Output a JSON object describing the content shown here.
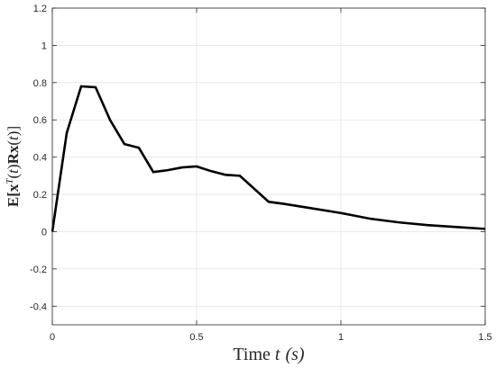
{
  "chart_data": {
    "type": "line",
    "xlabel_text": "Time ",
    "xlabel_var": "t",
    "xlabel_unit": "(s)",
    "ylabel": "E[x^T(t)Rx(t)]",
    "xlim": [
      0,
      1.5
    ],
    "ylim": [
      -0.5,
      1.2
    ],
    "grid": true,
    "x_ticks": [
      {
        "value": 0,
        "label": "0"
      },
      {
        "value": 0.5,
        "label": "0.5"
      },
      {
        "value": 1,
        "label": "1"
      },
      {
        "value": 1.5,
        "label": "1.5"
      }
    ],
    "y_ticks": [
      {
        "value": -0.4,
        "label": "-0.4"
      },
      {
        "value": -0.2,
        "label": "-0.2"
      },
      {
        "value": 0,
        "label": "0"
      },
      {
        "value": 0.2,
        "label": "0.2"
      },
      {
        "value": 0.4,
        "label": "0.4"
      },
      {
        "value": 0.6,
        "label": "0.6"
      },
      {
        "value": 0.8,
        "label": "0.8"
      },
      {
        "value": 1,
        "label": "1"
      },
      {
        "value": 1.2,
        "label": "1.2"
      }
    ],
    "series": [
      {
        "color": "#000000",
        "x": [
          0,
          0.05,
          0.1,
          0.15,
          0.2,
          0.25,
          0.3,
          0.35,
          0.4,
          0.45,
          0.5,
          0.55,
          0.6,
          0.65,
          0.7,
          0.75,
          0.8,
          0.9,
          1.0,
          1.1,
          1.2,
          1.3,
          1.4,
          1.5
        ],
        "y": [
          0,
          0.53,
          0.78,
          0.775,
          0.6,
          0.47,
          0.45,
          0.32,
          0.33,
          0.345,
          0.35,
          0.325,
          0.305,
          0.3,
          0.23,
          0.16,
          0.15,
          0.125,
          0.1,
          0.07,
          0.05,
          0.035,
          0.025,
          0.015
        ]
      }
    ]
  }
}
